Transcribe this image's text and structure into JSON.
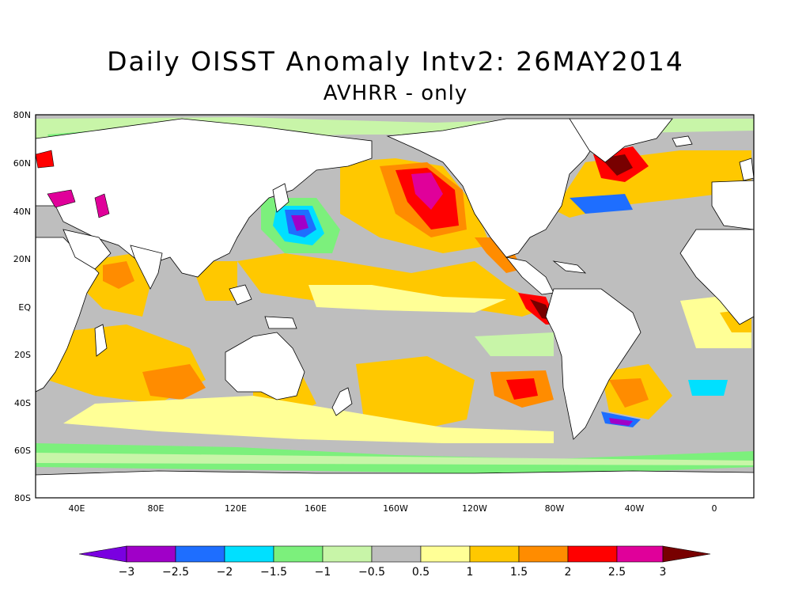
{
  "title": "Daily OISST Anomaly Intv2: 26MAY2014",
  "subtitle": "AVHRR - only",
  "lat_labels": [
    "80N",
    "60N",
    "40N",
    "20N",
    "EQ",
    "20S",
    "40S",
    "60S",
    "80S"
  ],
  "lon_labels": [
    "40E",
    "80E",
    "120E",
    "160E",
    "160W",
    "120W",
    "80W",
    "40W",
    "0"
  ],
  "colorbar": {
    "labels": [
      "−3",
      "−2.5",
      "−2",
      "−1.5",
      "−1",
      "−0.5",
      "0.5",
      "1",
      "1.5",
      "2",
      "2.5",
      "3"
    ],
    "colors": [
      "#7a00e0",
      "#a000c8",
      "#1e6eff",
      "#00e0ff",
      "#7cf07c",
      "#c8f5a8",
      "#bebebe",
      "#ffff96",
      "#ffc800",
      "#ff8c00",
      "#ff0000",
      "#e0009a",
      "#780000"
    ]
  },
  "colors": {
    "ocean_neutral": "#bebebe",
    "land": "#ffffff",
    "coast": "#000000"
  }
}
